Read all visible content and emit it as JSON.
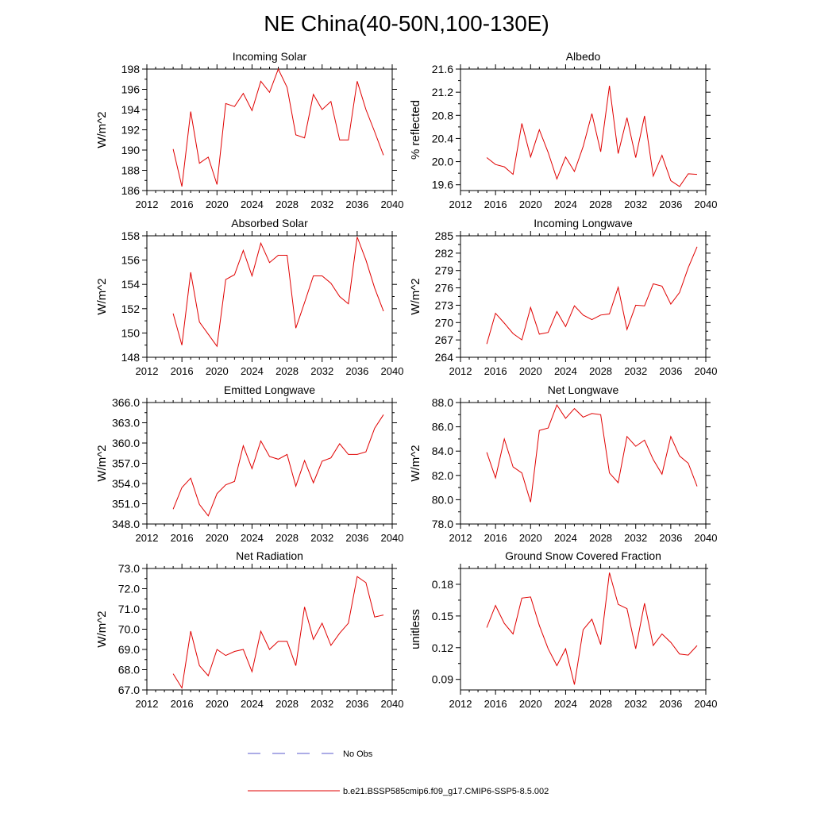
{
  "figure": {
    "title": "NE China(40-50N,100-130E)"
  },
  "legend": {
    "items": [
      {
        "label": "No Obs",
        "style": "dashed",
        "color": "#5a5acd"
      },
      {
        "label": "b.e21.BSSP585cmip6.f09_g17.CMIP6-SSP5-8.5.002",
        "style": "solid",
        "color": "#e00000"
      }
    ]
  },
  "chart_data": [
    {
      "type": "line",
      "title": "Incoming Solar",
      "ylabel": "W/m^2",
      "xlim": [
        2012,
        2040
      ],
      "xticks": [
        2012,
        2016,
        2020,
        2024,
        2028,
        2032,
        2036,
        2040
      ],
      "ylim": [
        186,
        198
      ],
      "yticks": [
        186,
        188,
        190,
        192,
        194,
        196,
        198
      ],
      "ydecimals": 0,
      "series": [
        {
          "color": "#e00000",
          "x": [
            2015,
            2016,
            2017,
            2018,
            2019,
            2020,
            2021,
            2022,
            2023,
            2024,
            2025,
            2026,
            2027,
            2028,
            2029,
            2030,
            2031,
            2032,
            2033,
            2034,
            2035,
            2036,
            2037,
            2038,
            2039
          ],
          "values": [
            190.1,
            186.4,
            193.8,
            188.7,
            189.3,
            186.6,
            194.6,
            194.3,
            195.6,
            193.9,
            196.8,
            195.7,
            198.0,
            196.2,
            191.5,
            191.2,
            195.5,
            194.0,
            194.8,
            191.0,
            191.0,
            196.8,
            194.0,
            191.8,
            189.5
          ]
        }
      ]
    },
    {
      "type": "line",
      "title": "Albedo",
      "ylabel": "% reflected",
      "xlim": [
        2012,
        2040
      ],
      "xticks": [
        2012,
        2016,
        2020,
        2024,
        2028,
        2032,
        2036,
        2040
      ],
      "ylim": [
        19.5,
        21.6
      ],
      "yticks": [
        19.6,
        20.0,
        20.4,
        20.8,
        21.2,
        21.6
      ],
      "ydecimals": 1,
      "series": [
        {
          "color": "#e00000",
          "x": [
            2015,
            2016,
            2017,
            2018,
            2019,
            2020,
            2021,
            2022,
            2023,
            2024,
            2025,
            2026,
            2027,
            2028,
            2029,
            2030,
            2031,
            2032,
            2033,
            2034,
            2035,
            2036,
            2037,
            2038,
            2039
          ],
          "values": [
            20.07,
            19.95,
            19.91,
            19.78,
            20.66,
            20.08,
            20.55,
            20.16,
            19.7,
            20.08,
            19.83,
            20.26,
            20.83,
            20.17,
            21.31,
            20.14,
            20.76,
            20.07,
            20.79,
            19.75,
            20.11,
            19.67,
            19.57,
            19.79,
            19.78
          ]
        }
      ]
    },
    {
      "type": "line",
      "title": "Absorbed Solar",
      "ylabel": "W/m^2",
      "xlim": [
        2012,
        2040
      ],
      "xticks": [
        2012,
        2016,
        2020,
        2024,
        2028,
        2032,
        2036,
        2040
      ],
      "ylim": [
        148,
        158
      ],
      "yticks": [
        148,
        150,
        152,
        154,
        156,
        158
      ],
      "ydecimals": 0,
      "series": [
        {
          "color": "#e00000",
          "x": [
            2015,
            2016,
            2017,
            2018,
            2019,
            2020,
            2021,
            2022,
            2023,
            2024,
            2025,
            2026,
            2027,
            2028,
            2029,
            2030,
            2031,
            2032,
            2033,
            2034,
            2035,
            2036,
            2037,
            2038,
            2039
          ],
          "values": [
            151.6,
            149.0,
            155.0,
            150.9,
            149.9,
            148.9,
            154.4,
            154.8,
            156.8,
            154.7,
            157.4,
            155.8,
            156.4,
            156.4,
            150.4,
            152.5,
            154.7,
            154.7,
            154.1,
            153.0,
            152.4,
            157.9,
            156.0,
            153.7,
            151.8
          ]
        }
      ]
    },
    {
      "type": "line",
      "title": "Incoming Longwave",
      "ylabel": "W/m^2",
      "xlim": [
        2012,
        2040
      ],
      "xticks": [
        2012,
        2016,
        2020,
        2024,
        2028,
        2032,
        2036,
        2040
      ],
      "ylim": [
        264,
        285
      ],
      "yticks": [
        264,
        267,
        270,
        273,
        276,
        279,
        282,
        285
      ],
      "ydecimals": 0,
      "series": [
        {
          "color": "#e00000",
          "x": [
            2015,
            2016,
            2017,
            2018,
            2019,
            2020,
            2021,
            2022,
            2023,
            2024,
            2025,
            2026,
            2027,
            2028,
            2029,
            2030,
            2031,
            2032,
            2033,
            2034,
            2035,
            2036,
            2037,
            2038,
            2039
          ],
          "values": [
            266.3,
            271.6,
            269.9,
            268.1,
            267.0,
            272.6,
            268.0,
            268.3,
            271.9,
            269.3,
            272.9,
            271.3,
            270.5,
            271.3,
            271.5,
            276.1,
            268.8,
            273.0,
            272.9,
            276.7,
            276.3,
            273.2,
            275.2,
            279.5,
            283.1
          ]
        }
      ]
    },
    {
      "type": "line",
      "title": "Emitted Longwave",
      "ylabel": "W/m^2",
      "xlim": [
        2012,
        2040
      ],
      "xticks": [
        2012,
        2016,
        2020,
        2024,
        2028,
        2032,
        2036,
        2040
      ],
      "ylim": [
        348,
        366
      ],
      "yticks": [
        348,
        351,
        354,
        357,
        360,
        363,
        366
      ],
      "ydecimals": 1,
      "series": [
        {
          "color": "#e00000",
          "x": [
            2015,
            2016,
            2017,
            2018,
            2019,
            2020,
            2021,
            2022,
            2023,
            2024,
            2025,
            2026,
            2027,
            2028,
            2029,
            2030,
            2031,
            2032,
            2033,
            2034,
            2035,
            2036,
            2037,
            2038,
            2039
          ],
          "values": [
            350.2,
            353.4,
            354.8,
            350.9,
            349.2,
            352.5,
            353.8,
            354.3,
            359.6,
            356.2,
            360.3,
            358.0,
            357.6,
            358.3,
            353.6,
            357.4,
            354.1,
            357.3,
            357.8,
            359.9,
            358.3,
            358.3,
            358.7,
            362.2,
            364.2
          ]
        }
      ]
    },
    {
      "type": "line",
      "title": "Net Longwave",
      "ylabel": "W/m^2",
      "xlim": [
        2012,
        2040
      ],
      "xticks": [
        2012,
        2016,
        2020,
        2024,
        2028,
        2032,
        2036,
        2040
      ],
      "ylim": [
        78,
        88
      ],
      "yticks": [
        78,
        80,
        82,
        84,
        86,
        88
      ],
      "ydecimals": 1,
      "series": [
        {
          "color": "#e00000",
          "x": [
            2015,
            2016,
            2017,
            2018,
            2019,
            2020,
            2021,
            2022,
            2023,
            2024,
            2025,
            2026,
            2027,
            2028,
            2029,
            2030,
            2031,
            2032,
            2033,
            2034,
            2035,
            2036,
            2037,
            2038,
            2039
          ],
          "values": [
            83.9,
            81.8,
            85.0,
            82.7,
            82.2,
            79.8,
            85.7,
            85.9,
            87.8,
            86.7,
            87.5,
            86.8,
            87.1,
            87.0,
            82.2,
            81.4,
            85.2,
            84.4,
            84.9,
            83.3,
            82.1,
            85.2,
            83.6,
            83.0,
            81.1
          ]
        }
      ]
    },
    {
      "type": "line",
      "title": "Net Radiation",
      "ylabel": "W/m^2",
      "xlim": [
        2012,
        2040
      ],
      "xticks": [
        2012,
        2016,
        2020,
        2024,
        2028,
        2032,
        2036,
        2040
      ],
      "ylim": [
        67,
        73
      ],
      "yticks": [
        67,
        68,
        69,
        70,
        71,
        72,
        73
      ],
      "ydecimals": 1,
      "series": [
        {
          "color": "#e00000",
          "x": [
            2015,
            2016,
            2017,
            2018,
            2019,
            2020,
            2021,
            2022,
            2023,
            2024,
            2025,
            2026,
            2027,
            2028,
            2029,
            2030,
            2031,
            2032,
            2033,
            2034,
            2035,
            2036,
            2037,
            2038,
            2039
          ],
          "values": [
            67.8,
            67.1,
            69.9,
            68.2,
            67.7,
            69.0,
            68.7,
            68.9,
            69.0,
            67.9,
            69.9,
            69.0,
            69.4,
            69.4,
            68.2,
            71.1,
            69.5,
            70.3,
            69.2,
            69.8,
            70.3,
            72.6,
            72.3,
            70.6,
            70.7
          ]
        }
      ]
    },
    {
      "type": "line",
      "title": "Ground Snow Covered Fraction",
      "ylabel": "unitless",
      "xlim": [
        2012,
        2040
      ],
      "xticks": [
        2012,
        2016,
        2020,
        2024,
        2028,
        2032,
        2036,
        2040
      ],
      "ylim": [
        0.08,
        0.195
      ],
      "yticks": [
        0.09,
        0.12,
        0.15,
        0.18
      ],
      "ydecimals": 2,
      "series": [
        {
          "color": "#e00000",
          "x": [
            2015,
            2016,
            2017,
            2018,
            2019,
            2020,
            2021,
            2022,
            2023,
            2024,
            2025,
            2026,
            2027,
            2028,
            2029,
            2030,
            2031,
            2032,
            2033,
            2034,
            2035,
            2036,
            2037,
            2038,
            2039
          ],
          "values": [
            0.139,
            0.16,
            0.143,
            0.133,
            0.167,
            0.168,
            0.141,
            0.119,
            0.103,
            0.119,
            0.085,
            0.137,
            0.147,
            0.123,
            0.191,
            0.161,
            0.157,
            0.119,
            0.162,
            0.122,
            0.133,
            0.125,
            0.114,
            0.113,
            0.122
          ]
        }
      ]
    }
  ]
}
